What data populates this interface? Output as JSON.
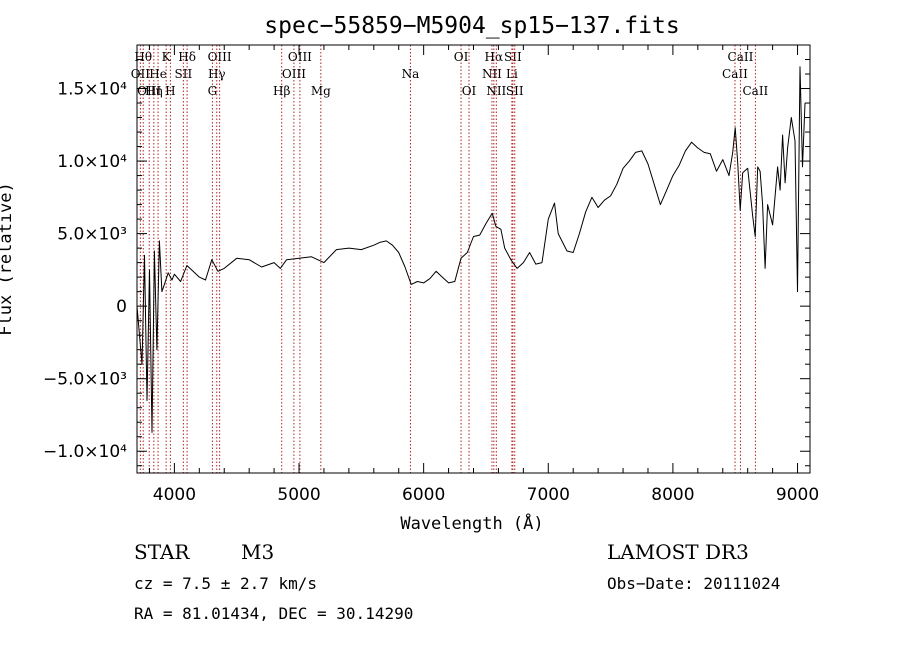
{
  "chart_data": {
    "type": "line",
    "title": "spec−55859−M5904_sp15−137.fits",
    "xlabel": "Wavelength (Å)",
    "ylabel": "Flux (relative)",
    "xlim": [
      3700,
      9100
    ],
    "ylim": [
      -11500,
      18000
    ],
    "x_ticks": [
      {
        "value": 4000,
        "label": "4000"
      },
      {
        "value": 5000,
        "label": "5000"
      },
      {
        "value": 6000,
        "label": "6000"
      },
      {
        "value": 7000,
        "label": "7000"
      },
      {
        "value": 8000,
        "label": "8000"
      },
      {
        "value": 9000,
        "label": "9000"
      }
    ],
    "y_ticks": [
      {
        "value": 15000,
        "label": "1.5×10⁴"
      },
      {
        "value": 10000,
        "label": "1.0×10⁴"
      },
      {
        "value": 5000,
        "label": "5.0×10³"
      },
      {
        "value": 0,
        "label": "0"
      },
      {
        "value": -5000,
        "label": "−5.0×10³"
      },
      {
        "value": -10000,
        "label": "−1.0×10⁴"
      }
    ],
    "series": [
      {
        "name": "flux",
        "x": [
          3700,
          3740,
          3760,
          3780,
          3800,
          3820,
          3840,
          3860,
          3880,
          3900,
          3920,
          3950,
          3980,
          4000,
          4050,
          4100,
          4150,
          4200,
          4250,
          4300,
          4350,
          4400,
          4500,
          4600,
          4700,
          4800,
          4850,
          4900,
          5000,
          5100,
          5200,
          5300,
          5400,
          5500,
          5600,
          5650,
          5700,
          5750,
          5800,
          5850,
          5900,
          5950,
          6000,
          6050,
          6100,
          6150,
          6200,
          6250,
          6300,
          6350,
          6400,
          6450,
          6500,
          6550,
          6580,
          6620,
          6650,
          6700,
          6750,
          6800,
          6850,
          6900,
          6950,
          7000,
          7050,
          7080,
          7150,
          7200,
          7250,
          7300,
          7350,
          7400,
          7450,
          7500,
          7550,
          7600,
          7650,
          7700,
          7750,
          7800,
          7850,
          7900,
          7950,
          8000,
          8050,
          8100,
          8150,
          8200,
          8250,
          8300,
          8350,
          8400,
          8450,
          8480,
          8500,
          8520,
          8540,
          8560,
          8600,
          8640,
          8660,
          8680,
          8700,
          8720,
          8740,
          8760,
          8800,
          8840,
          8860,
          8880,
          8900,
          8920,
          8950,
          8980,
          9000,
          9020,
          9040,
          9060
        ],
        "y": [
          0,
          -4000,
          3500,
          -6500,
          2500,
          -8700,
          3800,
          -3000,
          4500,
          1000,
          1500,
          2300,
          1800,
          2200,
          1700,
          2800,
          2400,
          2000,
          1800,
          3200,
          2400,
          2600,
          3300,
          3200,
          2700,
          3000,
          2600,
          3200,
          3300,
          3400,
          3000,
          3900,
          4000,
          3900,
          4200,
          4400,
          4500,
          4200,
          3700,
          2700,
          1500,
          1700,
          1600,
          1900,
          2400,
          2000,
          1600,
          1700,
          3300,
          3700,
          4800,
          4900,
          5700,
          6400,
          5500,
          5300,
          4000,
          3200,
          2600,
          3000,
          3700,
          2900,
          3000,
          6000,
          7100,
          5000,
          3800,
          3700,
          5000,
          6500,
          7500,
          6800,
          7300,
          7600,
          8400,
          9500,
          10000,
          10600,
          10700,
          9800,
          8400,
          7000,
          8000,
          9000,
          9700,
          10700,
          11300,
          10900,
          10600,
          10500,
          9300,
          10100,
          9000,
          10600,
          12300,
          9900,
          6600,
          9200,
          9500,
          6200,
          4800,
          9600,
          9300,
          7000,
          2600,
          7000,
          5600,
          9600,
          8000,
          11800,
          8500,
          10900,
          13000,
          11400,
          1000,
          16500,
          9600,
          14000
        ]
      }
    ],
    "lines": [
      {
        "wavelength": 3750,
        "label": "Hθ",
        "row": 1
      },
      {
        "wavelength": 3727,
        "label": "OII",
        "row": 2
      },
      {
        "wavelength": 3798,
        "label": "OIII",
        "row": 3
      },
      {
        "wavelength": 3835,
        "label": "Hη",
        "row": 3
      },
      {
        "wavelength": 3869,
        "label": "He",
        "row": 2
      },
      {
        "wavelength": 3934,
        "label": "K",
        "row": 1
      },
      {
        "wavelength": 3968,
        "label": "H",
        "row": 3
      },
      {
        "wavelength": 4072,
        "label": "SII",
        "row": 2
      },
      {
        "wavelength": 4102,
        "label": "Hδ",
        "row": 1
      },
      {
        "wavelength": 4305,
        "label": "G",
        "row": 3
      },
      {
        "wavelength": 4340,
        "label": "Hγ",
        "row": 2
      },
      {
        "wavelength": 4363,
        "label": "OIII",
        "row": 1
      },
      {
        "wavelength": 4861,
        "label": "Hβ",
        "row": 3
      },
      {
        "wavelength": 4959,
        "label": "OIII",
        "row": 2
      },
      {
        "wavelength": 5007,
        "label": "OIII",
        "row": 1
      },
      {
        "wavelength": 5175,
        "label": "Mg",
        "row": 3
      },
      {
        "wavelength": 5894,
        "label": "Na",
        "row": 2
      },
      {
        "wavelength": 6300,
        "label": "OI",
        "row": 1
      },
      {
        "wavelength": 6364,
        "label": "OI",
        "row": 3
      },
      {
        "wavelength": 6548,
        "label": "NII",
        "row": 2
      },
      {
        "wavelength": 6563,
        "label": "Hα",
        "row": 1
      },
      {
        "wavelength": 6583,
        "label": "NII",
        "row": 3
      },
      {
        "wavelength": 6708,
        "label": "Li",
        "row": 2
      },
      {
        "wavelength": 6716,
        "label": "SII",
        "row": 1
      },
      {
        "wavelength": 6731,
        "label": "SII",
        "row": 3
      },
      {
        "wavelength": 8498,
        "label": "CaII",
        "row": 2
      },
      {
        "wavelength": 8542,
        "label": "CaII",
        "row": 1
      },
      {
        "wavelength": 8662,
        "label": "CaII",
        "row": 3
      }
    ],
    "line_color": "#b22222"
  },
  "info": {
    "object_class": "STAR",
    "subclass": "M3",
    "survey": "LAMOST DR3",
    "redshift": "cz = 7.5 ± 2.7 km/s",
    "obs_date": "Obs−Date: 20111024",
    "coords": "RA =  81.01434, DEC =  30.14290"
  }
}
